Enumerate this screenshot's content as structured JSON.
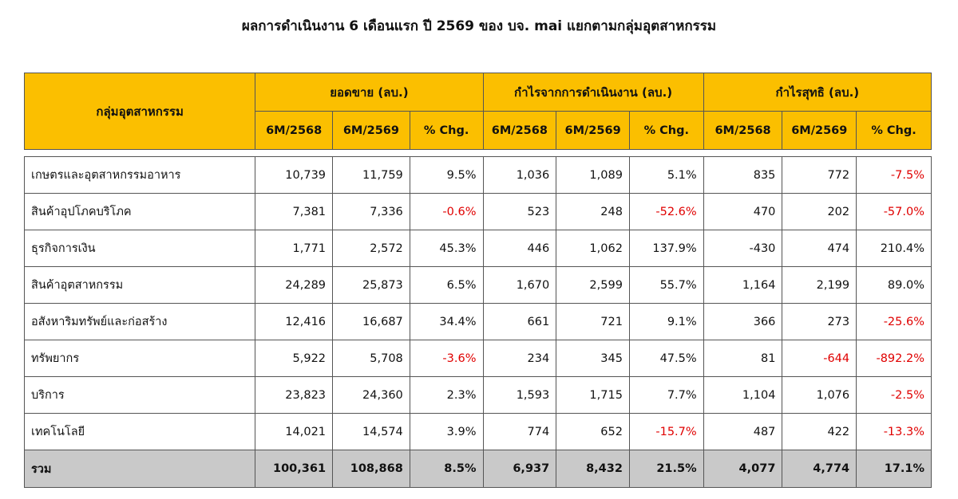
{
  "title": "ผลการดำเนินงาน 6 เดือนแรก ปี 2569 ของ บจ. mai แยกตามกลุ่มอุตสาหกรรม",
  "table": {
    "category_header": "กลุ่มอุตสาหกรรม",
    "groups": [
      "ยอดขาย (ลบ.)",
      "กำไรจากการดำเนินงาน (ลบ.)",
      "กำไรสุทธิ (ลบ.)"
    ],
    "subheaders": [
      "6M/2568",
      "6M/2569",
      "% Chg."
    ],
    "rows": [
      {
        "name": "เกษตรและอุตสาหกรรมอาหาร",
        "values": [
          "10,739",
          "11,759",
          "9.5%",
          "1,036",
          "1,089",
          "5.1%",
          "835",
          "772",
          "-7.5%"
        ]
      },
      {
        "name": "สินค้าอุปโภคบริโภค",
        "values": [
          "7,381",
          "7,336",
          "-0.6%",
          "523",
          "248",
          "-52.6%",
          "470",
          "202",
          "-57.0%"
        ]
      },
      {
        "name": "ธุรกิจการเงิน",
        "values": [
          "1,771",
          "2,572",
          "45.3%",
          "446",
          "1,062",
          "137.9%",
          "-430",
          "474",
          "210.4%"
        ]
      },
      {
        "name": "สินค้าอุตสาหกรรม",
        "values": [
          "24,289",
          "25,873",
          "6.5%",
          "1,670",
          "2,599",
          "55.7%",
          "1,164",
          "2,199",
          "89.0%"
        ]
      },
      {
        "name": "อสังหาริมทรัพย์และก่อสร้าง",
        "values": [
          "12,416",
          "16,687",
          "34.4%",
          "661",
          "721",
          "9.1%",
          "366",
          "273",
          "-25.6%"
        ]
      },
      {
        "name": "ทรัพยากร",
        "values": [
          "5,922",
          "5,708",
          "-3.6%",
          "234",
          "345",
          "47.5%",
          "81",
          "-644",
          "-892.2%"
        ]
      },
      {
        "name": "บริการ",
        "values": [
          "23,823",
          "24,360",
          "2.3%",
          "1,593",
          "1,715",
          "7.7%",
          "1,104",
          "1,076",
          "-2.5%"
        ]
      },
      {
        "name": "เทคโนโลยี",
        "values": [
          "14,021",
          "14,574",
          "3.9%",
          "774",
          "652",
          "-15.7%",
          "487",
          "422",
          "-13.3%"
        ]
      }
    ],
    "total": {
      "name": "รวม",
      "values": [
        "100,361",
        "108,868",
        "8.5%",
        "6,937",
        "8,432",
        "21.5%",
        "4,077",
        "4,774",
        "17.1%"
      ]
    },
    "negative_color": "#e00000",
    "header_color": "#fbbf00",
    "total_row_color": "#c9c9c9"
  }
}
